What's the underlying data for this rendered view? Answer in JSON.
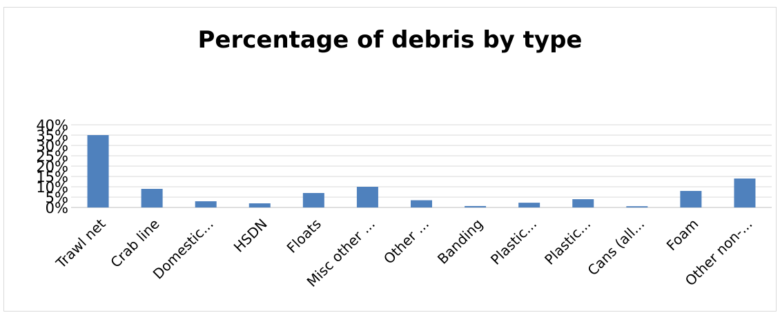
{
  "chart_data": {
    "type": "bar",
    "title": "Percentage of debris by type",
    "xlabel": "",
    "ylabel": "",
    "categories": [
      "Trawl net",
      "Crab line",
      "Domestic...",
      "HSDN",
      "Floats",
      "Misc other ...",
      "Other ...",
      "Banding",
      "Plastic...",
      "Plastic...",
      "Cans (all...",
      "Foam",
      "Other non-..."
    ],
    "values": [
      35,
      9,
      3,
      2,
      7,
      10,
      3.5,
      0.7,
      2.3,
      4,
      0.6,
      8,
      14
    ],
    "ylim": [
      0,
      40
    ],
    "yticks": [
      "0%",
      "5%",
      "10%",
      "15%",
      "20%",
      "25%",
      "30%",
      "35%",
      "40%"
    ],
    "grid": true,
    "legend": "none",
    "bar_color": "#4f81bd",
    "grid_color": "#d9d9d9"
  }
}
